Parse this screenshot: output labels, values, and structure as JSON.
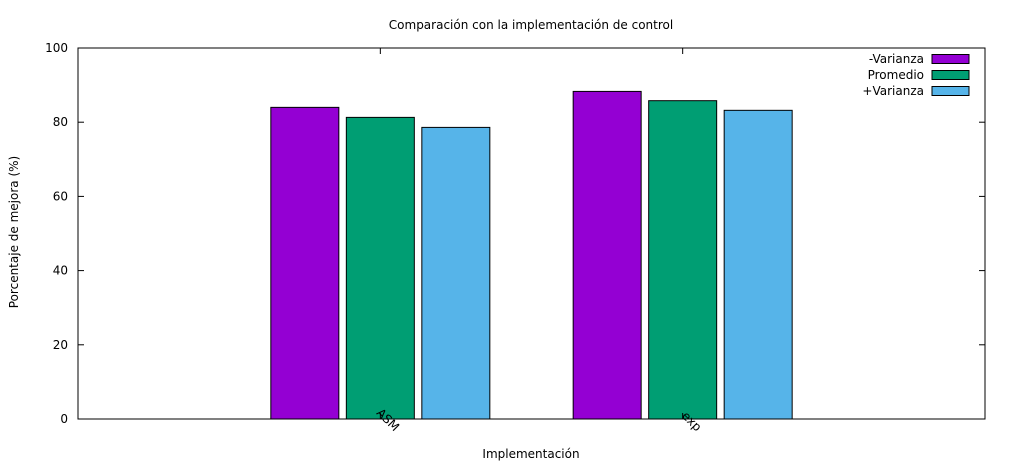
{
  "chart_data": {
    "type": "bar",
    "title": "Comparación con la implementación de control",
    "xlabel": "Implementación",
    "ylabel": "Porcentaje de mejora (%)",
    "categories": [
      "ASM",
      "exp"
    ],
    "ylim": [
      0,
      100
    ],
    "yticks": [
      "0",
      "20",
      "40",
      "60",
      "80",
      "100"
    ],
    "grid": false,
    "legend_position": "top-right",
    "series": [
      {
        "name": "-Varianza",
        "color": "#9400d3",
        "values": [
          84.0,
          88.3
        ]
      },
      {
        "name": "Promedio",
        "color": "#009e73",
        "values": [
          81.3,
          85.8
        ]
      },
      {
        "name": "+Varianza",
        "color": "#56b4e9",
        "values": [
          78.6,
          83.2
        ]
      }
    ]
  }
}
